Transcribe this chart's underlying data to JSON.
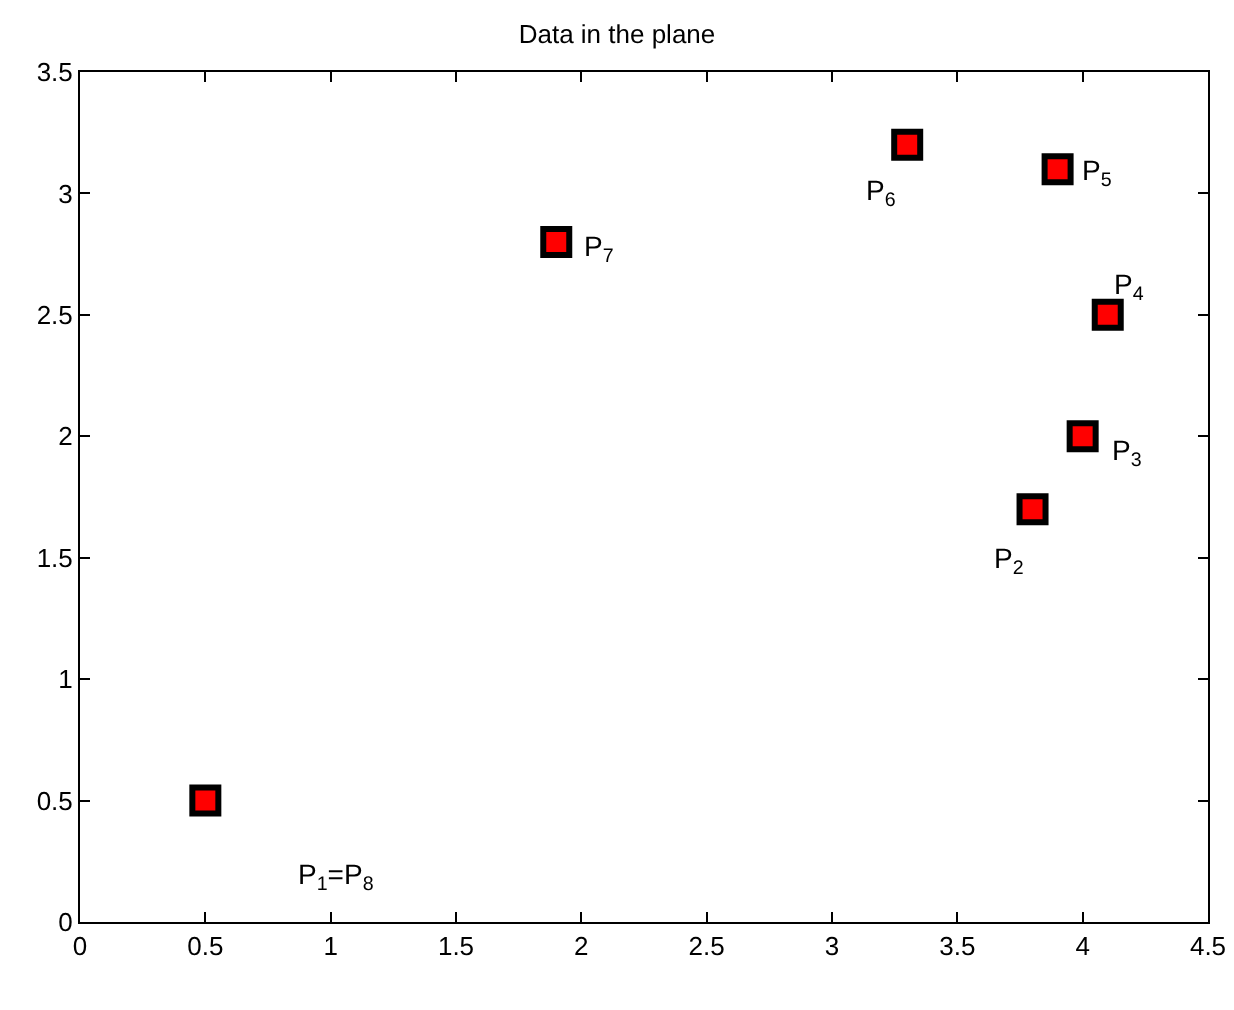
{
  "chart_data": {
    "type": "scatter",
    "title": "Data in the plane",
    "x": [
      0.5,
      3.8,
      4.0,
      4.1,
      3.9,
      3.3,
      1.9
    ],
    "series": [
      {
        "color": "#ff0000",
        "values": [
          0.5,
          1.7,
          2.0,
          2.5,
          3.1,
          3.2,
          2.8
        ]
      }
    ],
    "marker": "square",
    "grid": false,
    "xlim": [
      0,
      4.5
    ],
    "xticks": [
      0,
      0.5,
      1,
      1.5,
      2,
      2.5,
      3,
      3.5,
      4,
      4.5
    ],
    "ylim": [
      0,
      3.5
    ],
    "yticks": [
      0,
      0.5,
      1,
      1.5,
      2,
      2.5,
      3,
      3.5
    ],
    "annotations": [
      "P$_{1}$=P$_{8}$",
      {
        "text": "P$_{2}$",
        "x": 3.8,
        "y": 1.7
      },
      {
        "text": "P$_{3}$",
        "x": 4.0,
        "y": 2.0
      },
      {
        "text": "P$_{4}$",
        "x": 4.1,
        "y": 2.5
      },
      {
        "text": "P$_{5}$",
        "x": 3.9,
        "y": 3.1
      },
      {
        "text": "P$_{6}$",
        "x": 3.3,
        "y": 3.2
      },
      {
        "text": "P$_{7}$",
        "x": 1.9,
        "y": 2.8
      }
    ]
  }
}
